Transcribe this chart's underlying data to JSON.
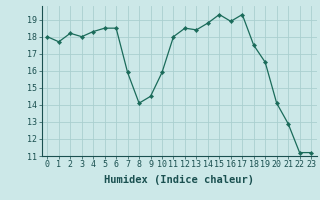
{
  "x": [
    0,
    1,
    2,
    3,
    4,
    5,
    6,
    7,
    8,
    9,
    10,
    11,
    12,
    13,
    14,
    15,
    16,
    17,
    18,
    19,
    20,
    21,
    22,
    23
  ],
  "y": [
    18.0,
    17.7,
    18.2,
    18.0,
    18.3,
    18.5,
    18.5,
    15.9,
    14.1,
    14.5,
    15.9,
    18.0,
    18.5,
    18.4,
    18.8,
    19.3,
    18.9,
    19.3,
    17.5,
    16.5,
    14.1,
    12.9,
    11.2,
    11.2
  ],
  "line_color": "#1a6b5a",
  "marker": "D",
  "marker_size": 2.2,
  "bg_color": "#cce8e8",
  "grid_color": "#aacfcf",
  "xlabel": "Humidex (Indice chaleur)",
  "xlim": [
    -0.5,
    23.5
  ],
  "ylim": [
    11,
    19.8
  ],
  "yticks": [
    11,
    12,
    13,
    14,
    15,
    16,
    17,
    18,
    19
  ],
  "xticks": [
    0,
    1,
    2,
    3,
    4,
    5,
    6,
    7,
    8,
    9,
    10,
    11,
    12,
    13,
    14,
    15,
    16,
    17,
    18,
    19,
    20,
    21,
    22,
    23
  ],
  "tick_fontsize": 6.0,
  "xlabel_fontsize": 7.5,
  "tick_color": "#1a5050",
  "label_color": "#1a5050"
}
